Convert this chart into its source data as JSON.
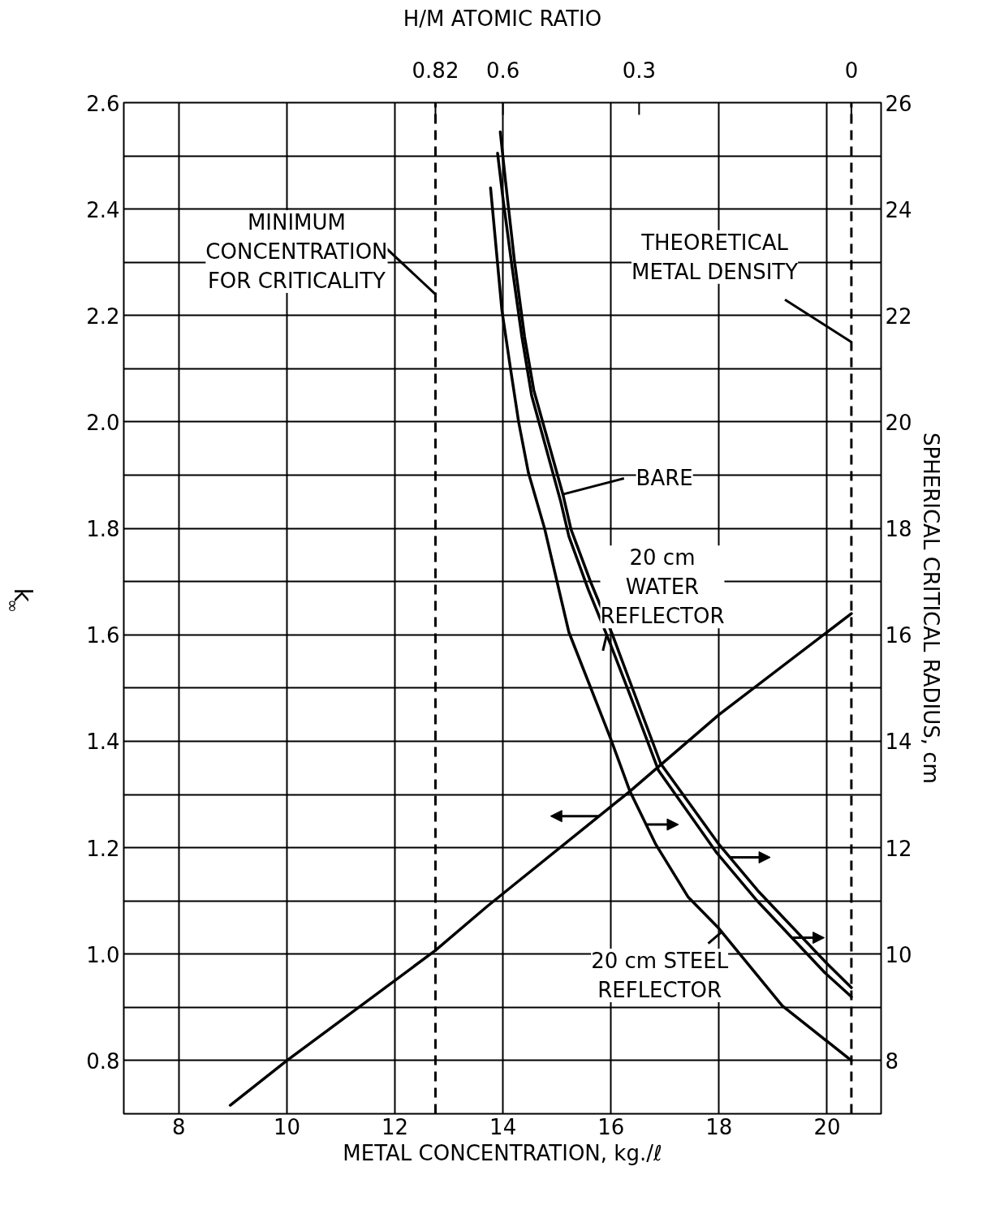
{
  "chart_data": {
    "type": "line",
    "xlabel": "METAL CONCENTRATION, kg./ℓ",
    "ylabel": "k$_{∞}$",
    "y2label": "SPHERICAL CRITICAL RADIUS, cm",
    "xlim": [
      6.98,
      21.0
    ],
    "xticks": [
      8,
      10,
      12,
      14,
      16,
      18,
      20
    ],
    "ylim": [
      0.7,
      2.6
    ],
    "yticks": [
      {
        "value": 0.8,
        "label": "0.8"
      },
      {
        "value": 0.9,
        "label": null
      },
      {
        "value": 1.0,
        "label": "1.0"
      },
      {
        "value": 1.1,
        "label": null
      },
      {
        "value": 1.2,
        "label": "1.2"
      },
      {
        "value": 1.3,
        "label": null
      },
      {
        "value": 1.4,
        "label": "1.4"
      },
      {
        "value": 1.5,
        "label": null
      },
      {
        "value": 1.6,
        "label": "1.6"
      },
      {
        "value": 1.7,
        "label": null
      },
      {
        "value": 1.8,
        "label": "1.8"
      },
      {
        "value": 1.9,
        "label": null
      },
      {
        "value": 2.0,
        "label": "2.0"
      },
      {
        "value": 2.1,
        "label": null
      },
      {
        "value": 2.2,
        "label": "2.2"
      },
      {
        "value": 2.3,
        "label": null
      },
      {
        "value": 2.4,
        "label": "2.4"
      },
      {
        "value": 2.5,
        "label": null
      },
      {
        "value": 2.6,
        "label": "2.6"
      }
    ],
    "y2lim": [
      7,
      26
    ],
    "y2ticks": [
      8,
      10,
      12,
      14,
      16,
      18,
      20,
      22,
      24,
      26
    ],
    "grid": true,
    "line_style": "solid",
    "series": [
      {
        "name": "BARE",
        "color": "#000000",
        "axis": "y2",
        "x": [
          13.95,
          14.05,
          14.21,
          14.4,
          14.57,
          15.11,
          15.26,
          15.62,
          16.02,
          16.38,
          16.92,
          18.0,
          18.72,
          20.0,
          20.45
        ],
        "values": [
          25.45,
          24.5,
          23.05,
          21.6,
          20.6,
          18.64,
          17.98,
          17.0,
          16.02,
          15.04,
          13.58,
          12.06,
          11.19,
          9.82,
          9.37
        ]
      },
      {
        "name": "20 cm\nWATER\nREFLECTOR",
        "color": "#000000",
        "axis": "y2",
        "x": [
          13.9,
          14.0,
          14.17,
          14.35,
          14.53,
          15.07,
          15.22,
          15.58,
          15.98,
          16.34,
          16.88,
          17.96,
          18.68,
          19.96,
          20.45
        ],
        "values": [
          25.05,
          24.2,
          22.9,
          21.6,
          20.5,
          18.5,
          17.85,
          16.85,
          15.85,
          14.9,
          13.45,
          11.9,
          11.03,
          9.65,
          9.2
        ]
      },
      {
        "name": "20 cm STEEL\nREFLECTOR",
        "color": "#000000",
        "axis": "y2",
        "x": [
          13.77,
          13.98,
          14.14,
          14.29,
          14.47,
          14.77,
          15.22,
          16.0,
          16.35,
          16.83,
          17.43,
          18.0,
          19.17,
          20.45
        ],
        "values": [
          24.4,
          22.1,
          21.0,
          20.0,
          19.05,
          18.0,
          16.05,
          14.03,
          13.06,
          12.06,
          11.07,
          10.48,
          9.03,
          8.0
        ]
      },
      {
        "color": "#000000",
        "x": [
          8.95,
          10.0,
          12.75,
          13.71,
          16.35,
          18.0,
          20.45
        ],
        "values": [
          0.716,
          0.8,
          1.007,
          1.09,
          1.306,
          1.45,
          1.64
        ]
      }
    ],
    "ref_lines": [
      {
        "axis": "x",
        "value": 12.75,
        "label": "MINIMUM\nCONCENTRATION\nFOR CRITICALITY",
        "color": "#000000",
        "line_style": "dashed"
      },
      {
        "axis": "x",
        "value": 20.45,
        "label": "THEORETICAL\nMETAL DENSITY",
        "color": "#000000",
        "line_style": "dashed"
      }
    ],
    "annotations": [
      "H/M ATOMIC RATIO",
      {
        "text": "0.82",
        "x": 12.75
      },
      {
        "text": "0.6",
        "x": 14.0
      },
      "0.3",
      {
        "text": "0",
        "x": 20.45
      }
    ]
  }
}
